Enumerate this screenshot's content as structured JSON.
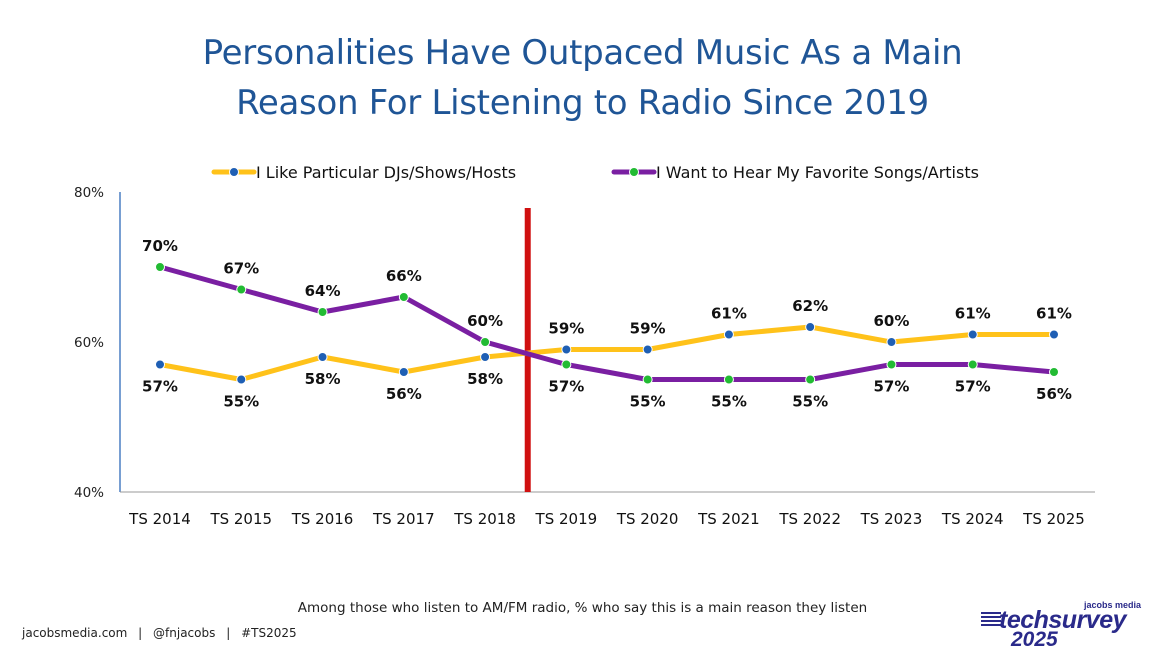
{
  "title_line1": "Personalities Have Outpaced Music As a Main",
  "title_line2": "Reason For Listening to Radio Since 2019",
  "footnote": "Among those who listen to AM/FM radio, % who say this is a main reason they listen",
  "footer": {
    "site": "jacobsmedia.com",
    "handle": "@fnjacobs",
    "hashtag": "#TS2025",
    "separator": "|"
  },
  "logo": {
    "small": "jacobs media",
    "brand": "techsurvey",
    "year": "2025"
  },
  "colors": {
    "title": "#1f5596",
    "series_djs": "#ffc21a",
    "series_djs_marker": "#1f5fb4",
    "series_songs": "#7a1fa2",
    "series_songs_marker": "#22bb33",
    "divider": "#d01010",
    "axis": "#1f5fb4"
  },
  "chart_data": {
    "type": "line",
    "categories": [
      "TS 2014",
      "TS 2015",
      "TS 2016",
      "TS 2017",
      "TS 2018",
      "TS 2019",
      "TS 2020",
      "TS 2021",
      "TS 2022",
      "TS 2023",
      "TS 2024",
      "TS 2025"
    ],
    "series": [
      {
        "name": "I Like Particular DJs/Shows/Hosts",
        "values": [
          57,
          55,
          58,
          56,
          58,
          59,
          59,
          61,
          62,
          60,
          61,
          61
        ],
        "labels": [
          "57%",
          "55%",
          "58%",
          "56%",
          "58%",
          "59%",
          "59%",
          "61%",
          "62%",
          "60%",
          "61%",
          "61%"
        ]
      },
      {
        "name": "I Want to Hear My Favorite Songs/Artists",
        "values": [
          70,
          67,
          64,
          66,
          60,
          57,
          55,
          55,
          55,
          57,
          57,
          56
        ],
        "labels": [
          "70%",
          "67%",
          "64%",
          "66%",
          "60%",
          "57%",
          "55%",
          "55%",
          "55%",
          "57%",
          "57%",
          "56%"
        ]
      }
    ],
    "ylim": [
      40,
      80
    ],
    "yticks": [
      40,
      60,
      80
    ],
    "ytick_labels": [
      "40%",
      "60%",
      "80%"
    ],
    "legend": "top",
    "grid": false,
    "divider_between": [
      "TS 2018",
      "TS 2019"
    ]
  }
}
